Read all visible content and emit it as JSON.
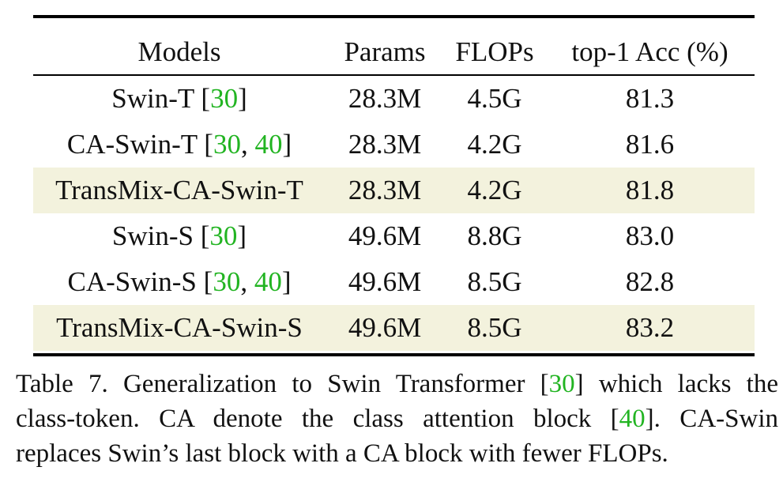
{
  "table": {
    "headers": {
      "models": "Models",
      "params": "Params",
      "flops": "FLOPs",
      "acc": "top-1 Acc (%)"
    },
    "rows": [
      {
        "model": "Swin-T [",
        "cites": [
          "30"
        ],
        "model_end": "]",
        "params": "28.3M",
        "flops": "4.5G",
        "acc": "81.3",
        "highlight": false
      },
      {
        "model": "CA-Swin-T [",
        "cites": [
          "30",
          "40"
        ],
        "model_end": "]",
        "params": "28.3M",
        "flops": "4.2G",
        "acc": "81.6",
        "highlight": false
      },
      {
        "model": "TransMix-CA-Swin-T",
        "cites": [],
        "model_end": "",
        "params": "28.3M",
        "flops": "4.2G",
        "acc": "81.8",
        "highlight": true
      },
      {
        "model": "Swin-S [",
        "cites": [
          "30"
        ],
        "model_end": "]",
        "params": "49.6M",
        "flops": "8.8G",
        "acc": "83.0",
        "highlight": false
      },
      {
        "model": "CA-Swin-S [",
        "cites": [
          "30",
          "40"
        ],
        "model_end": "]",
        "params": "49.6M",
        "flops": "8.5G",
        "acc": "82.8",
        "highlight": false
      },
      {
        "model": "TransMix-CA-Swin-S",
        "cites": [],
        "model_end": "",
        "params": "49.6M",
        "flops": "8.5G",
        "acc": "83.2",
        "highlight": true
      }
    ],
    "cite_separator": ", "
  },
  "caption": {
    "line1_pre": "Table 7. Generalization to Swin Transformer [",
    "line1_cite": "30",
    "line1_post": "] which lacks the",
    "line2_pre": "class-token.  CA denote the class attention block [",
    "line2_cite": "40",
    "line2_post": "].  CA-Swin",
    "line3": "replaces Swin’s last block with a CA block with fewer FLOPs."
  },
  "colors": {
    "citation": "#22b422",
    "highlight_row": "#f3f2dd",
    "text": "#111111"
  }
}
